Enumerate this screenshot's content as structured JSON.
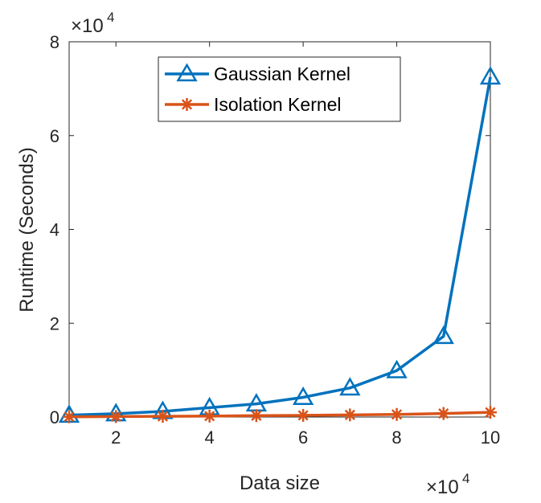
{
  "chart_data": {
    "type": "line",
    "xlabel": "Data size",
    "ylabel": "Runtime (Seconds)",
    "x_multiplier": {
      "base": "×10",
      "exp": "4"
    },
    "y_multiplier": {
      "base": "×10",
      "exp": "4"
    },
    "xlim": [
      1,
      10
    ],
    "ylim": [
      0,
      8
    ],
    "xticks": [
      2,
      4,
      6,
      8,
      10
    ],
    "yticks": [
      0,
      2,
      4,
      6,
      8
    ],
    "x": [
      1,
      2,
      3,
      4,
      5,
      6,
      7,
      8,
      9,
      10
    ],
    "series": [
      {
        "name": "Gaussian Kernel",
        "color": "#0072BD",
        "marker": "triangle",
        "values": [
          0.04,
          0.07,
          0.12,
          0.2,
          0.28,
          0.42,
          0.62,
          0.99,
          1.72,
          7.25
        ]
      },
      {
        "name": "Isolation Kernel",
        "color": "#D95319",
        "marker": "asterisk",
        "values": [
          0.005,
          0.01,
          0.015,
          0.02,
          0.03,
          0.035,
          0.045,
          0.055,
          0.075,
          0.1
        ]
      }
    ],
    "legend": "top-left",
    "grid": false
  }
}
